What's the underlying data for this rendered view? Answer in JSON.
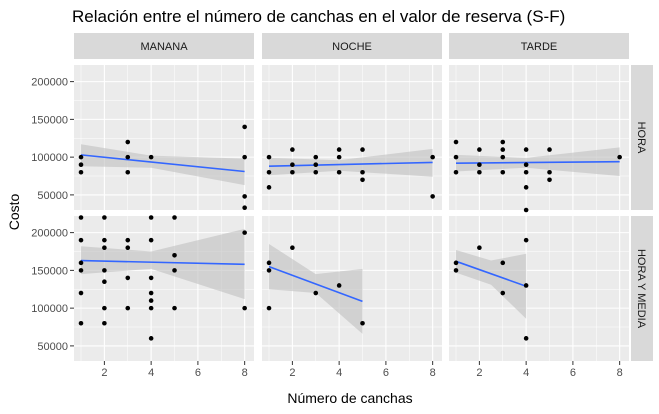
{
  "chart_data": {
    "type": "scatter",
    "title": "Relación entre el número de canchas en el valor de reserva (S-F)",
    "xlabel": "Número de canchas",
    "ylabel": "Costo",
    "xlim": [
      0.7,
      8.4
    ],
    "ylim": [
      30000,
      222000
    ],
    "x_ticks": [
      2,
      4,
      6,
      8
    ],
    "y_ticks": [
      50000,
      100000,
      150000,
      200000
    ],
    "y_tick_labels": [
      "50000",
      "100000",
      "150000",
      "200000"
    ],
    "facet_columns": [
      "MANANA",
      "NOCHE",
      "TARDE"
    ],
    "facet_rows": [
      "HORA",
      "HORA Y MEDIA"
    ],
    "colors": {
      "panel_bg": "#ebebeb",
      "grid": "#ffffff",
      "strip_bg": "#d9d9d9",
      "point": "#000000",
      "trend": "#3366ff",
      "band": "#c0c0c0"
    },
    "panels": [
      {
        "col": "MANANA",
        "row": "HORA",
        "points": [
          [
            1,
            100000
          ],
          [
            1,
            90000
          ],
          [
            1,
            80000
          ],
          [
            3,
            120000
          ],
          [
            3,
            100000
          ],
          [
            3,
            80000
          ],
          [
            4,
            100000
          ],
          [
            8,
            140000
          ],
          [
            8,
            100000
          ],
          [
            8,
            48000
          ],
          [
            8,
            33000
          ]
        ],
        "trend": {
          "x": [
            1,
            8
          ],
          "y": [
            103000,
            81000
          ]
        },
        "band": {
          "x": [
            1,
            4,
            8
          ],
          "upper": [
            117000,
            102000,
            98000
          ],
          "lower": [
            88000,
            86000,
            63000
          ]
        }
      },
      {
        "col": "NOCHE",
        "row": "HORA",
        "points": [
          [
            1,
            100000
          ],
          [
            1,
            80000
          ],
          [
            1,
            60000
          ],
          [
            2,
            110000
          ],
          [
            2,
            90000
          ],
          [
            2,
            80000
          ],
          [
            3,
            100000
          ],
          [
            3,
            90000
          ],
          [
            3,
            80000
          ],
          [
            4,
            110000
          ],
          [
            4,
            100000
          ],
          [
            4,
            80000
          ],
          [
            5,
            110000
          ],
          [
            5,
            80000
          ],
          [
            5,
            70000
          ],
          [
            8,
            100000
          ],
          [
            8,
            48000
          ]
        ],
        "trend": {
          "x": [
            1,
            8
          ],
          "y": [
            88000,
            93000
          ]
        },
        "band": {
          "x": [
            1,
            4,
            8
          ],
          "upper": [
            99000,
            96000,
            111000
          ],
          "lower": [
            76000,
            82000,
            74000
          ]
        }
      },
      {
        "col": "TARDE",
        "row": "HORA",
        "points": [
          [
            1,
            120000
          ],
          [
            1,
            100000
          ],
          [
            1,
            80000
          ],
          [
            2,
            110000
          ],
          [
            2,
            90000
          ],
          [
            2,
            80000
          ],
          [
            3,
            120000
          ],
          [
            3,
            110000
          ],
          [
            3,
            100000
          ],
          [
            3,
            80000
          ],
          [
            4,
            110000
          ],
          [
            4,
            90000
          ],
          [
            4,
            80000
          ],
          [
            4,
            60000
          ],
          [
            4,
            30000
          ],
          [
            5,
            110000
          ],
          [
            5,
            80000
          ],
          [
            5,
            70000
          ],
          [
            8,
            100000
          ]
        ],
        "trend": {
          "x": [
            1,
            8
          ],
          "y": [
            92000,
            94000
          ]
        },
        "band": {
          "x": [
            1,
            4,
            8
          ],
          "upper": [
            103000,
            99000,
            113000
          ],
          "lower": [
            81000,
            86000,
            75000
          ]
        }
      },
      {
        "col": "MANANA",
        "row": "HORA Y MEDIA",
        "points": [
          [
            1,
            220000
          ],
          [
            1,
            190000
          ],
          [
            1,
            160000
          ],
          [
            1,
            150000
          ],
          [
            1,
            120000
          ],
          [
            1,
            80000
          ],
          [
            2,
            220000
          ],
          [
            2,
            190000
          ],
          [
            2,
            180000
          ],
          [
            2,
            150000
          ],
          [
            2,
            135000
          ],
          [
            2,
            100000
          ],
          [
            2,
            80000
          ],
          [
            3,
            190000
          ],
          [
            3,
            180000
          ],
          [
            3,
            140000
          ],
          [
            3,
            100000
          ],
          [
            4,
            220000
          ],
          [
            4,
            190000
          ],
          [
            4,
            140000
          ],
          [
            4,
            120000
          ],
          [
            4,
            110000
          ],
          [
            4,
            100000
          ],
          [
            4,
            60000
          ],
          [
            5,
            220000
          ],
          [
            5,
            170000
          ],
          [
            5,
            150000
          ],
          [
            5,
            100000
          ],
          [
            8,
            200000
          ],
          [
            8,
            100000
          ]
        ],
        "trend": {
          "x": [
            1,
            8
          ],
          "y": [
            163000,
            158000
          ]
        },
        "band": {
          "x": [
            1,
            4,
            8
          ],
          "upper": [
            182000,
            175000,
            205000
          ],
          "lower": [
            145000,
            152000,
            112000
          ]
        }
      },
      {
        "col": "NOCHE",
        "row": "HORA Y MEDIA",
        "points": [
          [
            1,
            160000
          ],
          [
            1,
            150000
          ],
          [
            1,
            100000
          ],
          [
            2,
            180000
          ],
          [
            3,
            120000
          ],
          [
            4,
            130000
          ],
          [
            5,
            80000
          ]
        ],
        "trend": {
          "x": [
            1,
            5
          ],
          "y": [
            155000,
            109000
          ]
        },
        "band": {
          "x": [
            1,
            3,
            5
          ],
          "upper": [
            185000,
            145000,
            152000
          ],
          "lower": [
            125000,
            120000,
            66000
          ]
        }
      },
      {
        "col": "TARDE",
        "row": "HORA Y MEDIA",
        "points": [
          [
            1,
            160000
          ],
          [
            1,
            150000
          ],
          [
            2,
            180000
          ],
          [
            3,
            160000
          ],
          [
            3,
            120000
          ],
          [
            4,
            190000
          ],
          [
            4,
            130000
          ],
          [
            4,
            60000
          ]
        ],
        "trend": {
          "x": [
            1,
            4
          ],
          "y": [
            162000,
            129000
          ]
        },
        "band": {
          "x": [
            1,
            2.5,
            4
          ],
          "upper": [
            177000,
            163000,
            172000
          ],
          "lower": [
            147000,
            131000,
            86000
          ]
        }
      }
    ]
  }
}
